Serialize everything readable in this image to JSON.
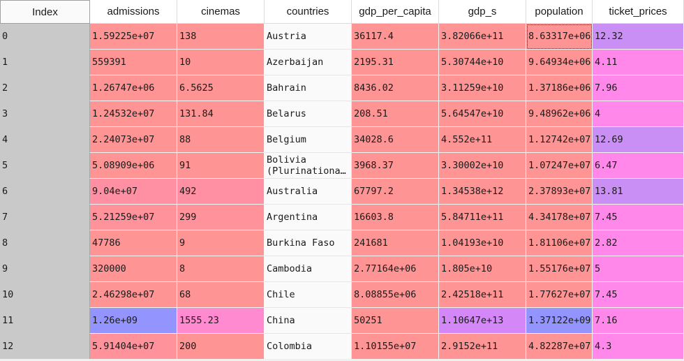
{
  "columns": [
    "Index",
    "admissions",
    "cinemas",
    "countries",
    "gdp_per_capita",
    "gdp_s",
    "population",
    "ticket_prices"
  ],
  "colors": {
    "salmon": "#ff9494",
    "pink_salmon": "#ff929a",
    "rose": "#ff8fa2",
    "pink_light": "#ff8ad0",
    "magenta_light": "#ff88ea",
    "lilac": "#d488f8",
    "violet": "#ca8ff5",
    "blue": "#9494ff",
    "text_bg": "#fafafa",
    "index_bg": "#c9c9c9"
  },
  "rows": [
    {
      "index": "0",
      "cells": [
        "1.59225e+07",
        "138",
        "Austria",
        "36117.4",
        "3.82066e+11",
        "8.63317e+06",
        "12.32"
      ],
      "bg": [
        "salmon",
        "salmon",
        "text_bg",
        "salmon",
        "salmon",
        "salmon",
        "violet"
      ]
    },
    {
      "index": "1",
      "cells": [
        "559391",
        "10",
        "Azerbaijan",
        "2195.31",
        "5.30744e+10",
        "9.64934e+06",
        "4.11"
      ],
      "bg": [
        "salmon",
        "salmon",
        "text_bg",
        "salmon",
        "salmon",
        "salmon",
        "magenta_light"
      ]
    },
    {
      "index": "2",
      "cells": [
        "1.26747e+06",
        "6.5625",
        "Bahrain",
        "8436.02",
        "3.11259e+10",
        "1.37186e+06",
        "7.96"
      ],
      "bg": [
        "salmon",
        "salmon",
        "text_bg",
        "salmon",
        "salmon",
        "salmon",
        "magenta_light"
      ]
    },
    {
      "index": "3",
      "cells": [
        "1.24532e+07",
        "131.84",
        "Belarus",
        "208.51",
        "5.64547e+10",
        "9.48962e+06",
        "4"
      ],
      "bg": [
        "salmon",
        "salmon",
        "text_bg",
        "salmon",
        "salmon",
        "salmon",
        "magenta_light"
      ]
    },
    {
      "index": "4",
      "cells": [
        "2.24073e+07",
        "88",
        "Belgium",
        "34028.6",
        "4.552e+11",
        "1.12742e+07",
        "12.69"
      ],
      "bg": [
        "salmon",
        "salmon",
        "text_bg",
        "salmon",
        "salmon",
        "salmon",
        "violet"
      ]
    },
    {
      "index": "5",
      "cells": [
        "5.08909e+06",
        "91",
        "Bolivia\n(Plurinationa…",
        "3968.37",
        "3.30002e+10",
        "1.07247e+07",
        "6.47"
      ],
      "bg": [
        "salmon",
        "salmon",
        "text_bg",
        "salmon",
        "salmon",
        "salmon",
        "magenta_light"
      ]
    },
    {
      "index": "6",
      "cells": [
        "9.04e+07",
        "492",
        "Australia",
        "67797.2",
        "1.34538e+12",
        "2.37893e+07",
        "13.81"
      ],
      "bg": [
        "rose",
        "rose",
        "text_bg",
        "salmon",
        "salmon",
        "salmon",
        "violet"
      ]
    },
    {
      "index": "7",
      "cells": [
        "5.21259e+07",
        "299",
        "Argentina",
        "16603.8",
        "5.84711e+11",
        "4.34178e+07",
        "7.45"
      ],
      "bg": [
        "pink_salmon",
        "pink_salmon",
        "text_bg",
        "salmon",
        "salmon",
        "salmon",
        "magenta_light"
      ]
    },
    {
      "index": "8",
      "cells": [
        "47786",
        "9",
        "Burkina Faso",
        "241681",
        "1.04193e+10",
        "1.81106e+07",
        "2.82"
      ],
      "bg": [
        "salmon",
        "salmon",
        "text_bg",
        "salmon",
        "salmon",
        "salmon",
        "magenta_light"
      ]
    },
    {
      "index": "9",
      "cells": [
        "320000",
        "8",
        "Cambodia",
        "2.77164e+06",
        "1.805e+10",
        "1.55176e+07",
        "5"
      ],
      "bg": [
        "salmon",
        "salmon",
        "text_bg",
        "salmon",
        "salmon",
        "salmon",
        "magenta_light"
      ]
    },
    {
      "index": "10",
      "cells": [
        "2.46298e+07",
        "68",
        "Chile",
        "8.08855e+06",
        "2.42518e+11",
        "1.77627e+07",
        "7.45"
      ],
      "bg": [
        "salmon",
        "salmon",
        "text_bg",
        "salmon",
        "salmon",
        "salmon",
        "magenta_light"
      ]
    },
    {
      "index": "11",
      "cells": [
        "1.26e+09",
        "1555.23",
        "China",
        "50251",
        "1.10647e+13",
        "1.37122e+09",
        "7.16"
      ],
      "bg": [
        "blue",
        "pink_light",
        "text_bg",
        "salmon",
        "lilac",
        "blue",
        "magenta_light"
      ]
    },
    {
      "index": "12",
      "cells": [
        "5.91404e+07",
        "200",
        "Colombia",
        "1.10155e+07",
        "2.9152e+11",
        "4.82287e+07",
        "4.3"
      ],
      "bg": [
        "pink_salmon",
        "salmon",
        "text_bg",
        "salmon",
        "salmon",
        "salmon",
        "magenta_light"
      ]
    }
  ],
  "selected_cell": {
    "row": 0,
    "column": "population"
  }
}
